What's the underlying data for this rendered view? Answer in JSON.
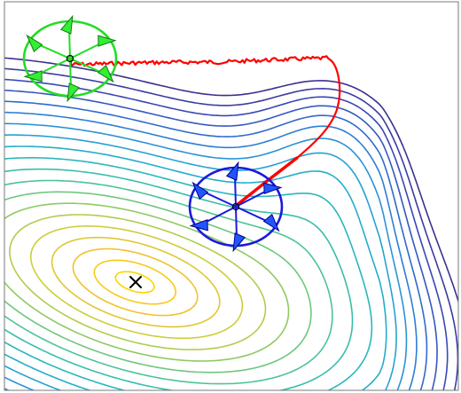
{
  "figure": {
    "colors": {
      "frame": "#7a7a7a",
      "background": "#ffffff",
      "path": "#ff0000",
      "green_ring": "#22dd22",
      "green_arrow_fill": "#33ee33",
      "green_arrow_edge": "#117711",
      "blue_ring": "#1a1add",
      "blue_arrow_fill": "#2255ff",
      "blue_arrow_edge": "#000088",
      "minimum_marker": "#000000",
      "contour_palette": [
        "#3b2f8f",
        "#3a48b6",
        "#2f6fd0",
        "#2a98d8",
        "#22b3c7",
        "#3ec2a2",
        "#84c96a",
        "#c9cf3a",
        "#f0c12f",
        "#ffd400"
      ]
    },
    "icons": {
      "start_cluster": "arrow-cluster-icon",
      "current_cluster": "arrow-cluster-icon",
      "minimum": "x-mark-icon"
    },
    "contours": {
      "level_count": 20
    },
    "arrow_clusters": [
      {
        "name": "start",
        "arrow_count": 6
      },
      {
        "name": "current",
        "arrow_count": 6
      }
    ]
  }
}
